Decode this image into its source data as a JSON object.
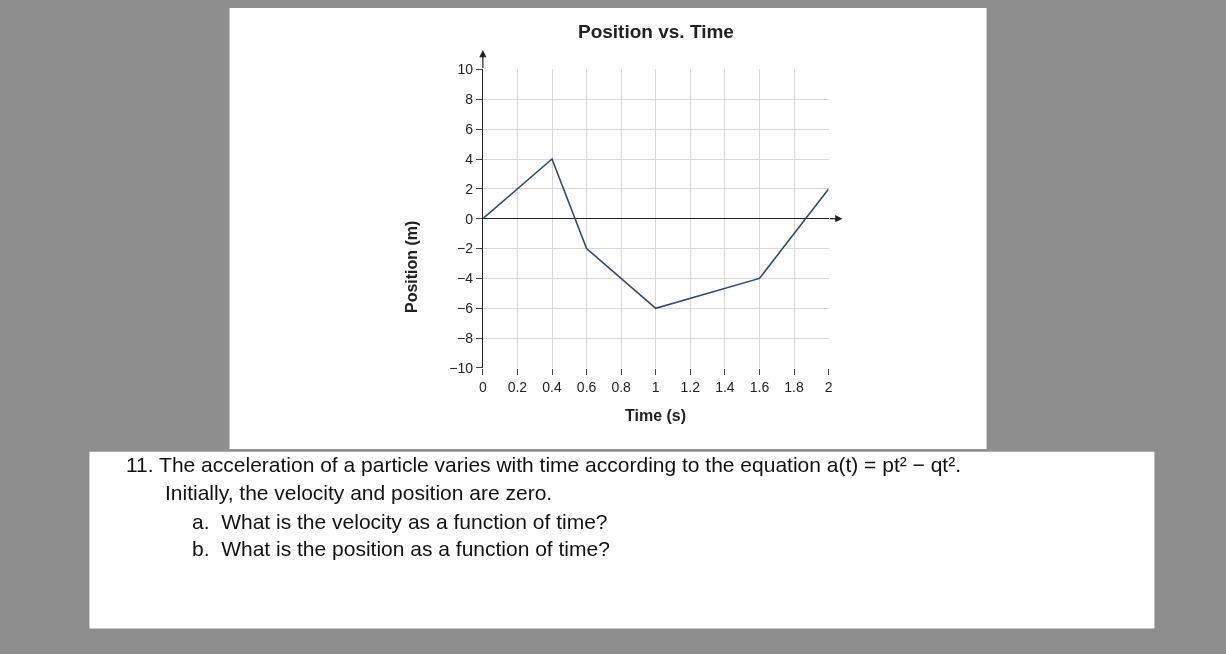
{
  "chart_data": {
    "type": "line",
    "title": "Position vs. Time",
    "xlabel": "Time (s)",
    "ylabel": "Position (m)",
    "x": [
      0,
      0.4,
      0.6,
      1,
      1.6,
      2
    ],
    "series": [
      {
        "color": "#2c4a78",
        "values": [
          0,
          4,
          -2,
          -6,
          -4,
          2
        ]
      }
    ],
    "xlim": [
      0,
      2
    ],
    "xticks": [
      0,
      0.2,
      0.4,
      0.6,
      0.8,
      1,
      1.2,
      1.4,
      1.6,
      1.8,
      2
    ],
    "ylim": [
      -10,
      10
    ],
    "yticks": [
      {
        "value": -10,
        "label": "−10"
      },
      {
        "value": -8,
        "label": "−8"
      },
      {
        "value": -6,
        "label": "−6"
      },
      {
        "value": -4,
        "label": "−4"
      },
      {
        "value": -2,
        "label": "−2"
      },
      0,
      2,
      4,
      6,
      8,
      10
    ],
    "grid": true,
    "marker": "none",
    "line_style": "solid",
    "annotations": [
      "11. The acceleration of a particle varies with time according to the equation a(t) = pt² − qt².",
      "Initially, the velocity and position are zero.",
      "a.  What is the velocity as a function of time?",
      "b.  What is the position as a function of time?"
    ]
  }
}
